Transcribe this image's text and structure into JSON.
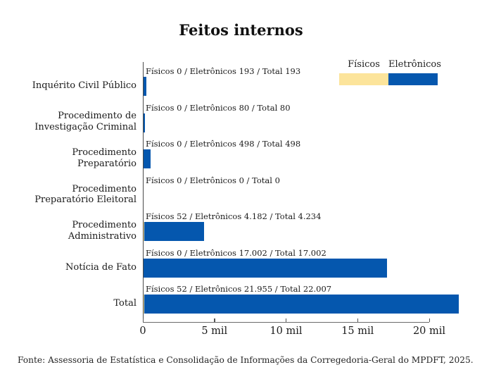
{
  "title": "Feitos internos",
  "chart_data": {
    "type": "bar",
    "orientation": "horizontal",
    "stacked": true,
    "title": "Feitos internos",
    "categories": [
      "Inquérito Civil Público",
      "Procedimento de Investigação Criminal",
      "Procedimento Preparatório",
      "Procedimento Preparatório Eleitoral",
      "Procedimento Administrativo",
      "Notícia de Fato",
      "Total"
    ],
    "series": [
      {
        "name": "Físicos",
        "color": "#FCE49B",
        "values": [
          0,
          0,
          0,
          0,
          52,
          0,
          52
        ]
      },
      {
        "name": "Eletrônicos",
        "color": "#0557AE",
        "values": [
          193,
          80,
          498,
          0,
          4182,
          17002,
          21955
        ]
      }
    ],
    "totals": [
      193,
      80,
      498,
      0,
      4234,
      17002,
      22007
    ],
    "bar_labels": [
      "Físicos 0 / Eletrônicos 193 / Total 193",
      "Físicos 0 / Eletrônicos 80 / Total 80",
      "Físicos 0 / Eletrônicos 498 / Total 498",
      "Físicos 0 / Eletrônicos 0 / Total 0",
      "Físicos 52 / Eletrônicos 4.182 / Total 4.234",
      "Físicos 0 / Eletrônicos 17.002 / Total 17.002",
      "Físicos 52 / Eletrônicos 21.955 / Total 22.007"
    ],
    "x_ticks": [
      {
        "value": 0,
        "label": "0"
      },
      {
        "value": 5000,
        "label": "5 mil"
      },
      {
        "value": 10000,
        "label": "10 mil"
      },
      {
        "value": 15000,
        "label": "15 mil"
      },
      {
        "value": 20000,
        "label": "20 mil"
      }
    ],
    "xlim": [
      0,
      22500
    ],
    "grid": false,
    "legend_position": "top-right"
  },
  "source": "Fonte: Assessoria de Estatística e Consolidação de Informações da Corregedoria-Geral do MPDFT, 2025."
}
